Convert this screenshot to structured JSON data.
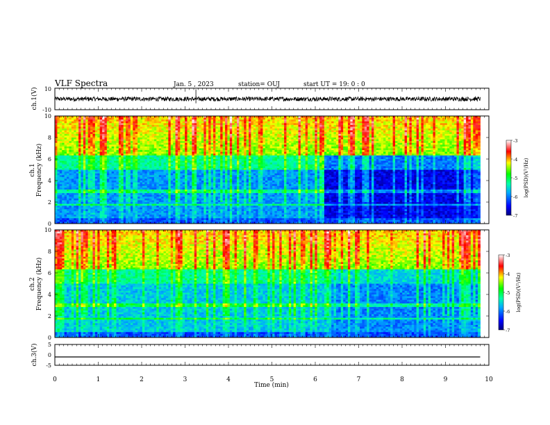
{
  "header": {
    "title": "VLF Spectra",
    "date": "Jan. 5 , 2023",
    "station": "station= OUJ",
    "start_ut": "start UT =  19: 0 : 0"
  },
  "chart_data": [
    {
      "type": "line",
      "panel": "ch1-waveform",
      "ylabel": "ch.1(V)",
      "ylim": [
        -10,
        10
      ],
      "yticks": [
        "10",
        "-10"
      ],
      "description_values": {
        "baseline": 0.0,
        "noise_amplitude": 2.0,
        "spike_x": 3.25
      }
    },
    {
      "type": "heatmap",
      "panel": "ch1-spectrogram",
      "ylabel": "Frequency (kHz)",
      "channel_label": "ch.1",
      "xlim": [
        0,
        10
      ],
      "ylim": [
        0,
        10
      ],
      "data_extent_x": [
        0,
        9.8
      ],
      "yticks": [
        "0",
        "2",
        "4",
        "6",
        "8",
        "10"
      ],
      "quiet_region_start": 6.2,
      "colorbar": {
        "label": "log(PSD)(V²/Hz)",
        "min": -7,
        "max": -3,
        "ticks": [
          "-3",
          "-4",
          "-5",
          "-6",
          "-7"
        ]
      }
    },
    {
      "type": "heatmap",
      "panel": "ch2-spectrogram",
      "ylabel": "Frequency (kHz)",
      "channel_label": "ch.2",
      "xlim": [
        0,
        10
      ],
      "ylim": [
        0,
        10
      ],
      "data_extent_x": [
        0,
        9.8
      ],
      "yticks": [
        "0",
        "2",
        "4",
        "6",
        "8",
        "10"
      ],
      "quiet_region_start": 6.2,
      "colorbar": {
        "label": "log(PSD)(V²/Hz)",
        "min": -7,
        "max": -3,
        "ticks": [
          "-3",
          "-4",
          "-5",
          "-6",
          "-7"
        ]
      }
    },
    {
      "type": "line",
      "panel": "ch3-waveform",
      "ylabel": "ch.3(V)",
      "ylim": [
        -5,
        5
      ],
      "yticks": [
        "5",
        "0",
        "-5"
      ],
      "x": [
        0,
        9.8
      ],
      "y": [
        -1.0,
        -1.0
      ]
    }
  ],
  "xaxis": {
    "label": "Time (min)",
    "ticks": [
      "0",
      "1",
      "2",
      "3",
      "4",
      "5",
      "6",
      "7",
      "8",
      "9",
      "10"
    ],
    "range": [
      0,
      10
    ]
  }
}
